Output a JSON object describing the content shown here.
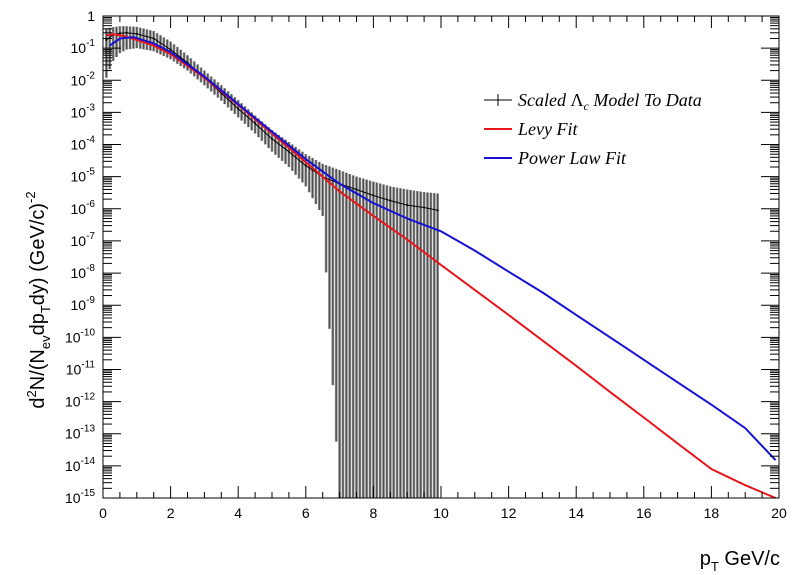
{
  "chart_data": {
    "type": "line",
    "xlabel": "p_T GeV/c",
    "xlabel_parts": {
      "base": "p",
      "sub": "T",
      "rest": " GeV/c"
    },
    "ylabel_parts": {
      "a": "d",
      "a_sup": "2",
      "b": "N/(N",
      "b_sub": "ev",
      "c": "dp",
      "c_sub": "T",
      "d": "dy) (GeV/c)",
      "d_sup": "-2"
    },
    "xlim": [
      0,
      20
    ],
    "ylim": [
      1e-15,
      1
    ],
    "yscale": "log",
    "x_ticks": [
      "0",
      "2",
      "4",
      "6",
      "8",
      "10",
      "12",
      "14",
      "16",
      "18",
      "20"
    ],
    "y_ticks": [
      {
        "base": "1",
        "exp": ""
      },
      {
        "base": "10",
        "exp": "-1"
      },
      {
        "base": "10",
        "exp": "-2"
      },
      {
        "base": "10",
        "exp": "-3"
      },
      {
        "base": "10",
        "exp": "-4"
      },
      {
        "base": "10",
        "exp": "-5"
      },
      {
        "base": "10",
        "exp": "-6"
      },
      {
        "base": "10",
        "exp": "-7"
      },
      {
        "base": "10",
        "exp": "-8"
      },
      {
        "base": "10",
        "exp": "-9"
      },
      {
        "base": "10",
        "exp": "-10"
      },
      {
        "base": "10",
        "exp": "-11"
      },
      {
        "base": "10",
        "exp": "-12"
      },
      {
        "base": "10",
        "exp": "-13"
      },
      {
        "base": "10",
        "exp": "-14"
      },
      {
        "base": "10",
        "exp": "-15"
      }
    ],
    "legend_position": "top-right",
    "series": [
      {
        "name": "Scaled Λc Model To Data",
        "legend": {
          "pre": "Scaled ",
          "lambda": "Λ",
          "sub": "c",
          "post": " Model To Data"
        },
        "kind": "histogram-with-errors",
        "color": "#000000",
        "x": [
          0.1,
          0.3,
          0.5,
          0.7,
          1.0,
          1.5,
          2.0,
          2.5,
          3.0,
          3.5,
          4.0,
          4.5,
          5.0,
          5.5,
          6.0,
          6.5,
          7.0,
          7.5,
          8.0,
          8.5,
          9.0,
          9.5,
          9.9
        ],
        "y": [
          0.18,
          0.26,
          0.29,
          0.3,
          0.28,
          0.2,
          0.09,
          0.035,
          0.012,
          0.004,
          0.0013,
          0.00045,
          0.00015,
          6e-05,
          2.2e-05,
          1e-05,
          6e-06,
          4e-06,
          2.6e-06,
          1.8e-06,
          1.3e-06,
          1.1e-06,
          9e-07
        ],
        "err_low": [
          0.012,
          0.04,
          0.07,
          0.09,
          0.1,
          0.08,
          0.045,
          0.02,
          0.007,
          0.0023,
          0.0007,
          0.00022,
          6e-05,
          2e-05,
          5e-06,
          6e-07,
          1e-15,
          1e-15,
          1e-15,
          1e-15,
          1e-15,
          1e-15,
          1e-15
        ],
        "err_high": [
          0.4,
          0.45,
          0.48,
          0.48,
          0.46,
          0.34,
          0.16,
          0.06,
          0.02,
          0.007,
          0.0024,
          0.0008,
          0.00028,
          0.00012,
          5e-05,
          2.5e-05,
          1.6e-05,
          1e-05,
          7e-06,
          5e-06,
          4e-06,
          3.3e-06,
          3e-06
        ]
      },
      {
        "name": "Levy Fit",
        "kind": "line",
        "color": "#e8161b",
        "x": [
          0.1,
          0.3,
          0.6,
          1.0,
          1.5,
          2.0,
          3.0,
          4.0,
          5.0,
          6.0,
          7.0,
          8.0,
          9.0,
          10.0,
          11.0,
          12.0,
          13.0,
          14.0,
          15.0,
          16.0,
          17.0,
          18.0,
          19.0,
          19.9
        ],
        "y": [
          0.25,
          0.27,
          0.24,
          0.18,
          0.12,
          0.065,
          0.012,
          0.0017,
          0.00022,
          2.8e-05,
          3.5e-06,
          6e-07,
          1.1e-07,
          1.8e-08,
          3e-09,
          5e-10,
          8e-11,
          1.3e-11,
          2e-12,
          3.2e-13,
          5e-14,
          8e-15,
          2.5e-15,
          1e-15
        ]
      },
      {
        "name": "Power Law Fit",
        "kind": "line",
        "color": "#1510d4",
        "x": [
          0.2,
          0.5,
          0.9,
          1.5,
          2.0,
          3.0,
          4.0,
          5.0,
          6.0,
          7.0,
          8.0,
          9.0,
          10.0,
          11.0,
          12.0,
          13.0,
          14.0,
          15.0,
          16.0,
          17.0,
          18.0,
          19.0,
          19.9
        ],
        "y": [
          0.12,
          0.2,
          0.22,
          0.14,
          0.075,
          0.013,
          0.0018,
          0.00025,
          3.5e-05,
          6e-06,
          1.5e-06,
          5e-07,
          2e-07,
          5e-08,
          1.1e-08,
          2.5e-09,
          5e-10,
          1e-10,
          2e-11,
          4e-12,
          8e-13,
          1.5e-13,
          1.5e-14
        ]
      }
    ]
  }
}
